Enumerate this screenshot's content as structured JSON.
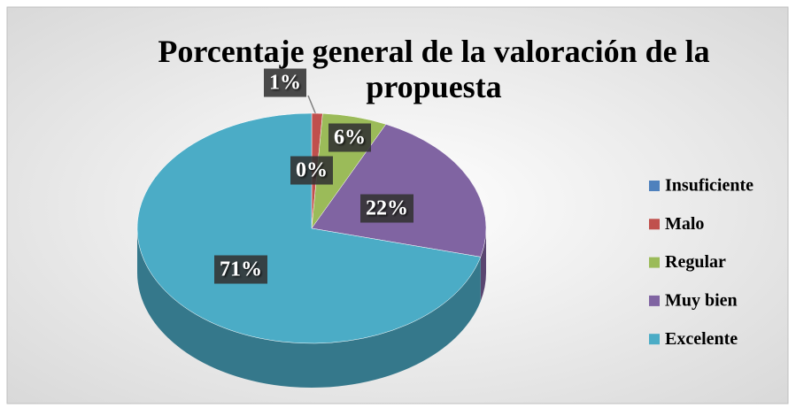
{
  "chart_data": {
    "type": "pie",
    "title": "Porcentaje general de la valoración de la propuesta",
    "categories": [
      "Insuficiente",
      "Malo",
      "Regular",
      "Muy bien",
      "Excelente"
    ],
    "values": [
      0,
      1,
      6,
      22,
      71
    ],
    "value_labels": [
      "0%",
      "1%",
      "6%",
      "22%",
      "71%"
    ],
    "colors": [
      "#4f81bd",
      "#c0504d",
      "#9bbb59",
      "#8064a2",
      "#4bacc6"
    ],
    "legend": "right"
  }
}
